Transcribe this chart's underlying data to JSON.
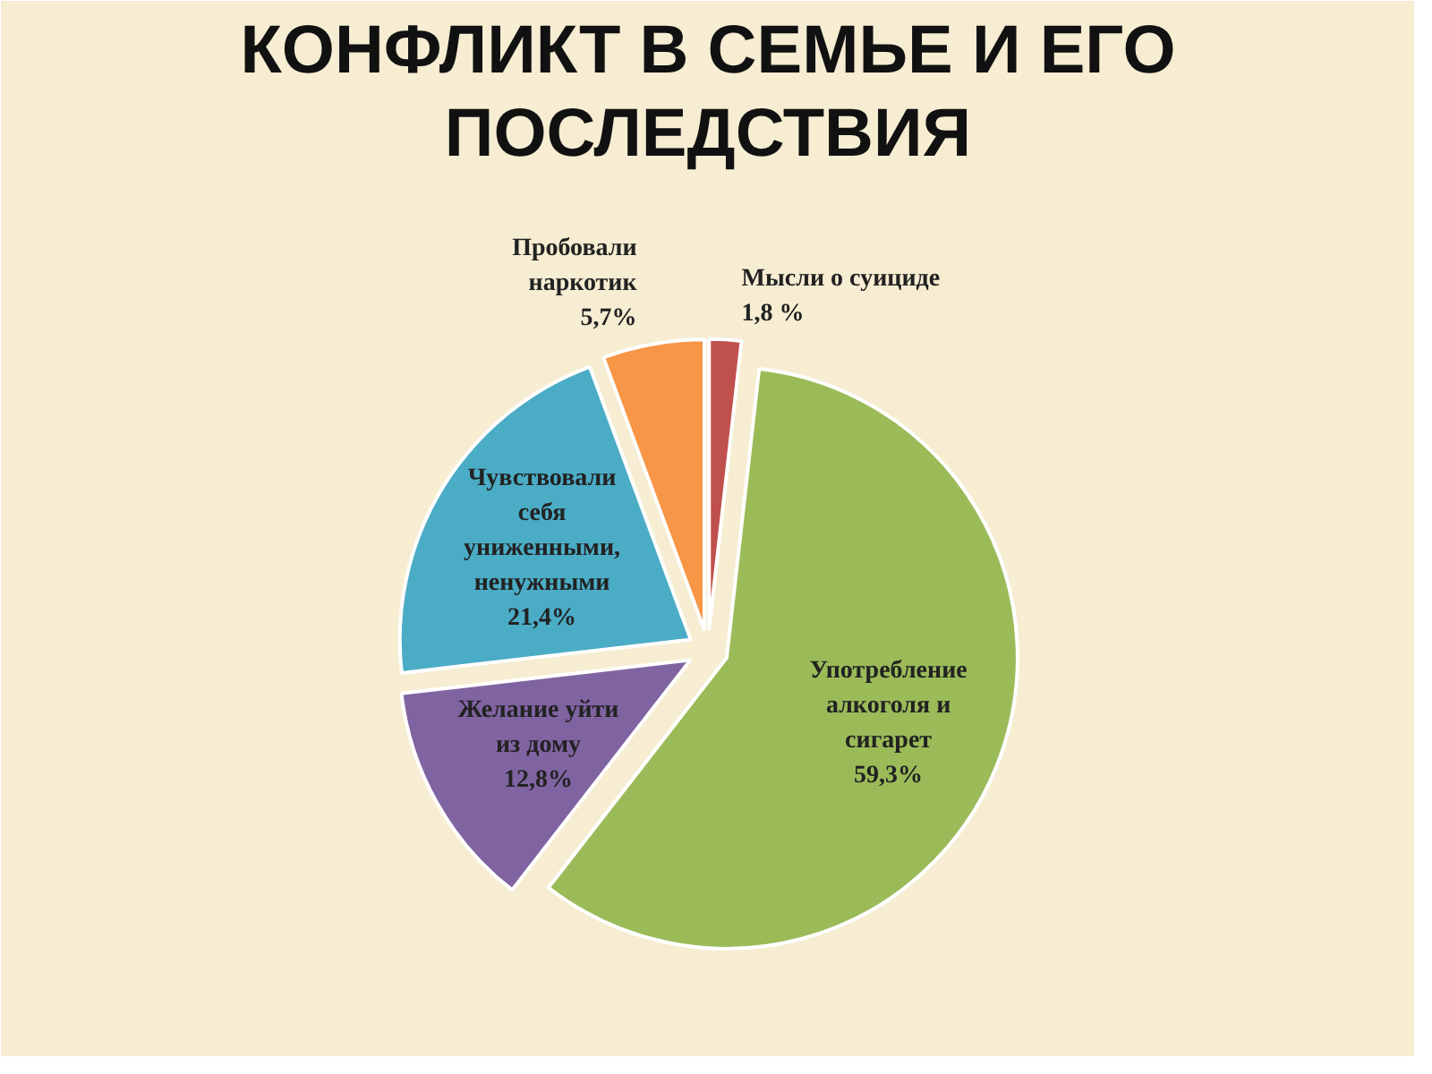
{
  "chart_data": {
    "type": "pie",
    "title": "КОНФЛИКТ В СЕМЬЕ И ЕГО ПОСЛЕДСТВИЯ",
    "categories": [
      "Мысли о суициде",
      "Употребление алкоголя и сигарет",
      "Желание уйти из дому",
      "Чувствовали себя униженными, ненужными",
      "Пробовали наркотик"
    ],
    "values": [
      1.8,
      59.3,
      12.8,
      21.4,
      5.7
    ],
    "value_labels": [
      "1,8 %",
      "59,3%",
      "12,8%",
      "21,4%",
      "5,7%"
    ],
    "colors": [
      "#c0504d",
      "#9bbb59",
      "#8064a2",
      "#4bacc6",
      "#f79646"
    ]
  }
}
